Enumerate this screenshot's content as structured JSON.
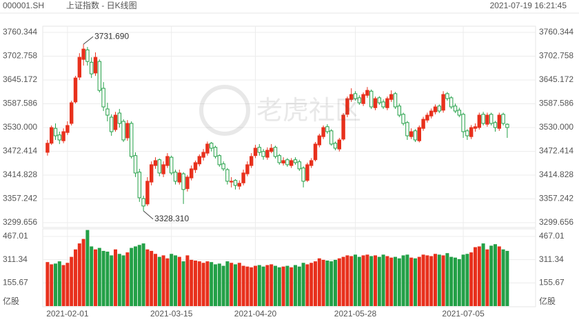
{
  "header": {
    "code": "000001.SH",
    "title": "上证指数 - 日K线图",
    "timestamp": "2021-07-19 16:21:45"
  },
  "watermark": "老虎社区",
  "chart_data": [
    {
      "type": "candlestick",
      "categories": [
        null,
        null,
        null,
        null,
        null,
        "2021-02-01",
        null,
        null,
        null,
        null,
        null,
        null,
        null,
        null,
        null,
        null,
        null,
        null,
        null,
        null,
        null,
        null,
        null,
        null,
        null,
        null,
        null,
        null,
        null,
        null,
        null,
        "2021-03-15",
        null,
        null,
        null,
        null,
        null,
        null,
        null,
        null,
        null,
        null,
        null,
        null,
        null,
        null,
        null,
        null,
        null,
        null,
        null,
        null,
        "2021-04-20",
        null,
        null,
        null,
        null,
        null,
        null,
        null,
        null,
        null,
        null,
        null,
        null,
        null,
        null,
        null,
        null,
        null,
        null,
        null,
        null,
        null,
        null,
        null,
        null,
        "2021-05-28",
        null,
        null,
        null,
        null,
        null,
        null,
        null,
        null,
        null,
        null,
        null,
        null,
        null,
        null,
        null,
        null,
        null,
        null,
        null,
        null,
        null,
        null,
        null,
        null,
        null,
        null,
        "2021-07-05",
        null,
        null,
        null,
        null,
        null,
        null,
        null,
        null,
        null,
        null,
        null
      ],
      "candles": [
        [
          3470,
          3500,
          3462,
          3492
        ],
        [
          3492,
          3535,
          3488,
          3530
        ],
        [
          3528,
          3540,
          3500,
          3510
        ],
        [
          3512,
          3520,
          3490,
          3500
        ],
        [
          3498,
          3528,
          3492,
          3520
        ],
        [
          3518,
          3545,
          3512,
          3535
        ],
        [
          3540,
          3595,
          3535,
          3590
        ],
        [
          3592,
          3655,
          3588,
          3650
        ],
        [
          3652,
          3710,
          3645,
          3700
        ],
        [
          3695,
          3731.69,
          3680,
          3720
        ],
        [
          3718,
          3725,
          3680,
          3690
        ],
        [
          3688,
          3700,
          3650,
          3660
        ],
        [
          3662,
          3712,
          3655,
          3700
        ],
        [
          3690,
          3695,
          3615,
          3620
        ],
        [
          3625,
          3640,
          3570,
          3580
        ],
        [
          3575,
          3590,
          3545,
          3560
        ],
        [
          3555,
          3562,
          3510,
          3520
        ],
        [
          3525,
          3568,
          3520,
          3560
        ],
        [
          3565,
          3575,
          3530,
          3540
        ],
        [
          3545,
          3550,
          3495,
          3500
        ],
        [
          3505,
          3548,
          3498,
          3540
        ],
        [
          3540,
          3545,
          3455,
          3460
        ],
        [
          3462,
          3470,
          3410,
          3420
        ],
        [
          3422,
          3430,
          3350,
          3360
        ],
        [
          3358,
          3365,
          3328.31,
          3340
        ],
        [
          3345,
          3410,
          3340,
          3400
        ],
        [
          3398,
          3448,
          3390,
          3440
        ],
        [
          3438,
          3458,
          3430,
          3450
        ],
        [
          3452,
          3455,
          3412,
          3420
        ],
        [
          3418,
          3448,
          3410,
          3440
        ],
        [
          3438,
          3468,
          3432,
          3460
        ],
        [
          3458,
          3462,
          3415,
          3420
        ],
        [
          3422,
          3428,
          3392,
          3400
        ],
        [
          3398,
          3428,
          3392,
          3420
        ],
        [
          3418,
          3422,
          3345,
          3380
        ],
        [
          3382,
          3415,
          3375,
          3410
        ],
        [
          3408,
          3438,
          3402,
          3430
        ],
        [
          3428,
          3450,
          3420,
          3445
        ],
        [
          3442,
          3465,
          3436,
          3460
        ],
        [
          3458,
          3478,
          3450,
          3470
        ],
        [
          3468,
          3496,
          3462,
          3490
        ],
        [
          3492,
          3495,
          3472,
          3480
        ],
        [
          3482,
          3486,
          3455,
          3460
        ],
        [
          3462,
          3465,
          3435,
          3440
        ],
        [
          3442,
          3448,
          3425,
          3430
        ],
        [
          3428,
          3432,
          3392,
          3400
        ],
        [
          3398,
          3410,
          3385,
          3400
        ],
        [
          3402,
          3405,
          3380,
          3390
        ],
        [
          3388,
          3402,
          3380,
          3395
        ],
        [
          3396,
          3428,
          3390,
          3420
        ],
        [
          3418,
          3448,
          3412,
          3440
        ],
        [
          3438,
          3468,
          3432,
          3460
        ],
        [
          3462,
          3488,
          3456,
          3480
        ],
        [
          3482,
          3490,
          3462,
          3470
        ],
        [
          3472,
          3478,
          3452,
          3460
        ],
        [
          3458,
          3482,
          3452,
          3475
        ],
        [
          3472,
          3490,
          3468,
          3480
        ],
        [
          3482,
          3486,
          3455,
          3460
        ],
        [
          3462,
          3466,
          3440,
          3445
        ],
        [
          3444,
          3458,
          3438,
          3450
        ],
        [
          3452,
          3456,
          3435,
          3440
        ],
        [
          3438,
          3456,
          3432,
          3450
        ],
        [
          3452,
          3458,
          3440,
          3445
        ],
        [
          3447,
          3452,
          3425,
          3430
        ],
        [
          3432,
          3436,
          3385,
          3400
        ],
        [
          3402,
          3445,
          3398,
          3440
        ],
        [
          3438,
          3456,
          3432,
          3450
        ],
        [
          3452,
          3495,
          3448,
          3490
        ],
        [
          3488,
          3515,
          3482,
          3510
        ],
        [
          3508,
          3535,
          3502,
          3530
        ],
        [
          3532,
          3538,
          3515,
          3520
        ],
        [
          3522,
          3526,
          3486,
          3490
        ],
        [
          3492,
          3496,
          3475,
          3480
        ],
        [
          3478,
          3505,
          3472,
          3500
        ],
        [
          3502,
          3565,
          3498,
          3560
        ],
        [
          3562,
          3605,
          3555,
          3600
        ],
        [
          3598,
          3625,
          3592,
          3610
        ],
        [
          3612,
          3618,
          3595,
          3600
        ],
        [
          3602,
          3608,
          3585,
          3590
        ],
        [
          3588,
          3615,
          3582,
          3610
        ],
        [
          3608,
          3628,
          3602,
          3620
        ],
        [
          3618,
          3622,
          3575,
          3580
        ],
        [
          3578,
          3605,
          3572,
          3600
        ],
        [
          3602,
          3606,
          3585,
          3590
        ],
        [
          3592,
          3598,
          3575,
          3580
        ],
        [
          3578,
          3605,
          3572,
          3600
        ],
        [
          3598,
          3620,
          3592,
          3610
        ],
        [
          3612,
          3616,
          3575,
          3580
        ],
        [
          3582,
          3588,
          3555,
          3560
        ],
        [
          3562,
          3566,
          3535,
          3540
        ],
        [
          3542,
          3546,
          3500,
          3510
        ],
        [
          3508,
          3528,
          3502,
          3520
        ],
        [
          3522,
          3526,
          3495,
          3500
        ],
        [
          3498,
          3535,
          3494,
          3530
        ],
        [
          3528,
          3556,
          3522,
          3550
        ],
        [
          3548,
          3566,
          3542,
          3560
        ],
        [
          3558,
          3576,
          3552,
          3570
        ],
        [
          3568,
          3586,
          3562,
          3580
        ],
        [
          3582,
          3586,
          3565,
          3570
        ],
        [
          3572,
          3618,
          3566,
          3610
        ],
        [
          3612,
          3616,
          3595,
          3600
        ],
        [
          3602,
          3606,
          3575,
          3580
        ],
        [
          3582,
          3588,
          3565,
          3570
        ],
        [
          3572,
          3578,
          3555,
          3560
        ],
        [
          3562,
          3566,
          3505,
          3520
        ],
        [
          3522,
          3526,
          3500,
          3510
        ],
        [
          3508,
          3536,
          3502,
          3530
        ],
        [
          3528,
          3540,
          3520,
          3532
        ],
        [
          3530,
          3566,
          3525,
          3560
        ],
        [
          3562,
          3568,
          3535,
          3540
        ],
        [
          3538,
          3566,
          3532,
          3560
        ],
        [
          3562,
          3566,
          3535,
          3540
        ],
        [
          3542,
          3546,
          3520,
          3530
        ],
        [
          3528,
          3566,
          3522,
          3560
        ],
        [
          3562,
          3566,
          3535,
          3540
        ],
        [
          3538,
          3540,
          3505,
          3530
        ]
      ],
      "ylim": [
        3299.656,
        3760.344
      ],
      "yticks": [
        3760.344,
        3702.758,
        3645.172,
        3587.586,
        {
          "value": 3530,
          "label": "3530.000"
        },
        3472.414,
        3414.828,
        3357.242,
        3299.656
      ],
      "annotations": [
        {
          "value": 3731.69,
          "label": "3731.690"
        },
        {
          "value": 3328.31,
          "label": "3328.310"
        }
      ],
      "up_color": "#e8301c",
      "down_color": "#23a047",
      "grid": true
    },
    {
      "type": "bar",
      "values": [
        295,
        280,
        285,
        300,
        275,
        290,
        330,
        380,
        420,
        450,
        510,
        400,
        380,
        390,
        370,
        365,
        340,
        380,
        350,
        340,
        360,
        390,
        400,
        410,
        420,
        380,
        370,
        350,
        330,
        340,
        320,
        350,
        340,
        330,
        300,
        340,
        310,
        305,
        300,
        290,
        300,
        295,
        280,
        285,
        270,
        300,
        290,
        280,
        290,
        270,
        265,
        260,
        270,
        275,
        265,
        275,
        280,
        270,
        260,
        265,
        270,
        260,
        275,
        265,
        290,
        280,
        290,
        300,
        320,
        310,
        305,
        300,
        310,
        320,
        330,
        340,
        335,
        345,
        330,
        340,
        345,
        335,
        340,
        330,
        345,
        335,
        325,
        330,
        320,
        340,
        345,
        325,
        320,
        330,
        345,
        340,
        335,
        350,
        345,
        340,
        355,
        330,
        325,
        315,
        345,
        350,
        360,
        395,
        400,
        420,
        380,
        405,
        415,
        400,
        380,
        370
      ],
      "ylim": [
        0,
        513
      ],
      "yticks": [
        467.01,
        311.34,
        155.67
      ],
      "unit": "亿股",
      "grid": true
    }
  ]
}
